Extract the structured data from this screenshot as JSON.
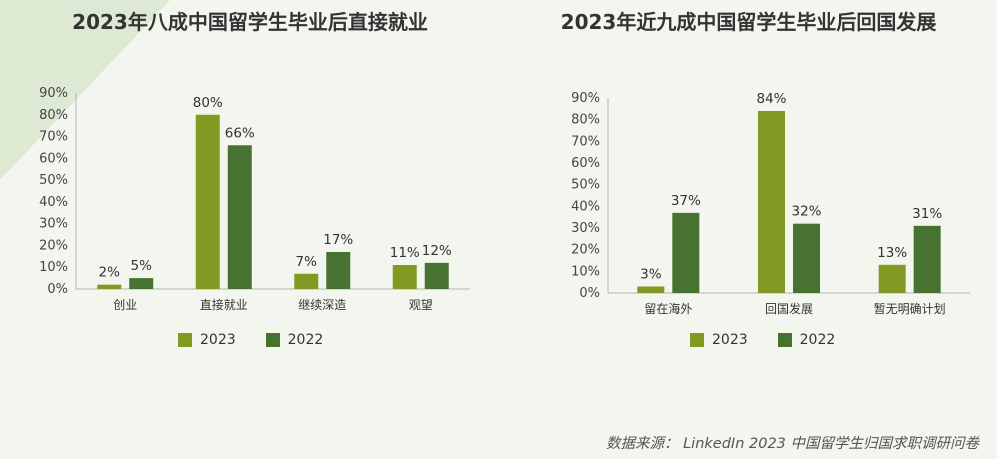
{
  "source_text": "数据来源：  LinkedIn 2023 中国留学生归国求职调研问卷",
  "colors": {
    "series_2023": "#829a22",
    "series_2022": "#477231",
    "axis": "#b4b4b4"
  },
  "chart_data": [
    {
      "type": "bar",
      "title": "2023年八成中国留学生毕业后直接就业",
      "categories": [
        "创业",
        "直接就业",
        "继续深造",
        "观望"
      ],
      "series": [
        {
          "name": "2023",
          "values": [
            2,
            80,
            7,
            11
          ]
        },
        {
          "name": "2022",
          "values": [
            5,
            66,
            17,
            12
          ]
        }
      ],
      "ylim": [
        0,
        90
      ],
      "yticks": [
        0,
        10,
        20,
        30,
        40,
        50,
        60,
        70,
        80,
        90
      ],
      "unit": "%",
      "legend": "bottom"
    },
    {
      "type": "bar",
      "title": "2023年近九成中国留学生毕业后回国发展",
      "categories": [
        "留在海外",
        "回国发展",
        "暂无明确计划"
      ],
      "series": [
        {
          "name": "2023",
          "values": [
            3,
            84,
            13
          ]
        },
        {
          "name": "2022",
          "values": [
            37,
            32,
            31
          ]
        }
      ],
      "ylim": [
        0,
        90
      ],
      "yticks": [
        0,
        10,
        20,
        30,
        40,
        50,
        60,
        70,
        80,
        90
      ],
      "unit": "%",
      "legend": "bottom"
    }
  ]
}
